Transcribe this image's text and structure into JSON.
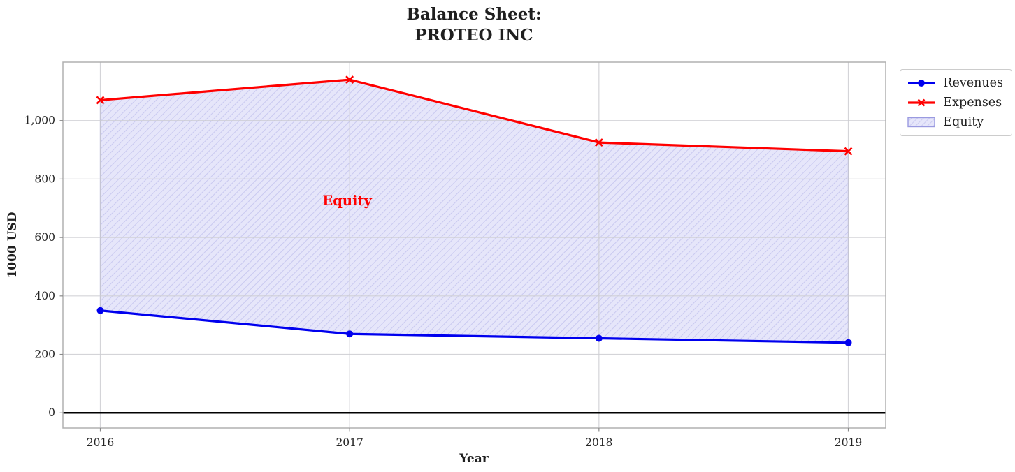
{
  "figure": {
    "background": "#ffffff",
    "text_color": "#1f1f1f"
  },
  "chart_data": {
    "type": "line",
    "title_lines": [
      "Balance Sheet:",
      "PROTEO INC"
    ],
    "xlabel": "Year",
    "ylabel": "1000 USD",
    "x": [
      2016,
      2017,
      2018,
      2019
    ],
    "series": [
      {
        "name": "Revenues",
        "values": [
          350,
          270,
          255,
          240
        ],
        "color": "#0000ee",
        "marker": "circle"
      },
      {
        "name": "Expenses",
        "values": [
          1070,
          1140,
          925,
          895
        ],
        "color": "#ff0000",
        "marker": "x"
      }
    ],
    "fill_between": {
      "name": "Equity",
      "between": [
        "Revenues",
        "Expenses"
      ],
      "facecolor": "#e6e6fa",
      "hatch": "/",
      "hatch_color": "#c9c9f0",
      "edgecolor": "#9a9ae0"
    },
    "annotation": {
      "text": "Equity",
      "x": 2016.99,
      "y": 710,
      "color": "#ff0000"
    },
    "xticks": {
      "values": [
        2016,
        2017,
        2018,
        2019
      ],
      "labels": [
        "2016",
        "2017",
        "2018",
        "2019"
      ]
    },
    "yticks": {
      "values": [
        0,
        200,
        400,
        600,
        800,
        1000
      ],
      "labels": [
        "0",
        "200",
        "400",
        "600",
        "800",
        "1,000"
      ]
    },
    "xlim": [
      2015.85,
      2019.15
    ],
    "ylim": [
      -52,
      1200
    ],
    "grid": true,
    "grid_color": "#cdcdd2",
    "spine_color": "#b0b0b0",
    "tick_color": "#8a8a8a",
    "tick_label_color": "#262626",
    "zero_line": {
      "y": 0,
      "color": "#000000"
    },
    "legend": {
      "location": "outside-upper-right",
      "entries": [
        "Revenues",
        "Expenses",
        "Equity"
      ]
    }
  }
}
